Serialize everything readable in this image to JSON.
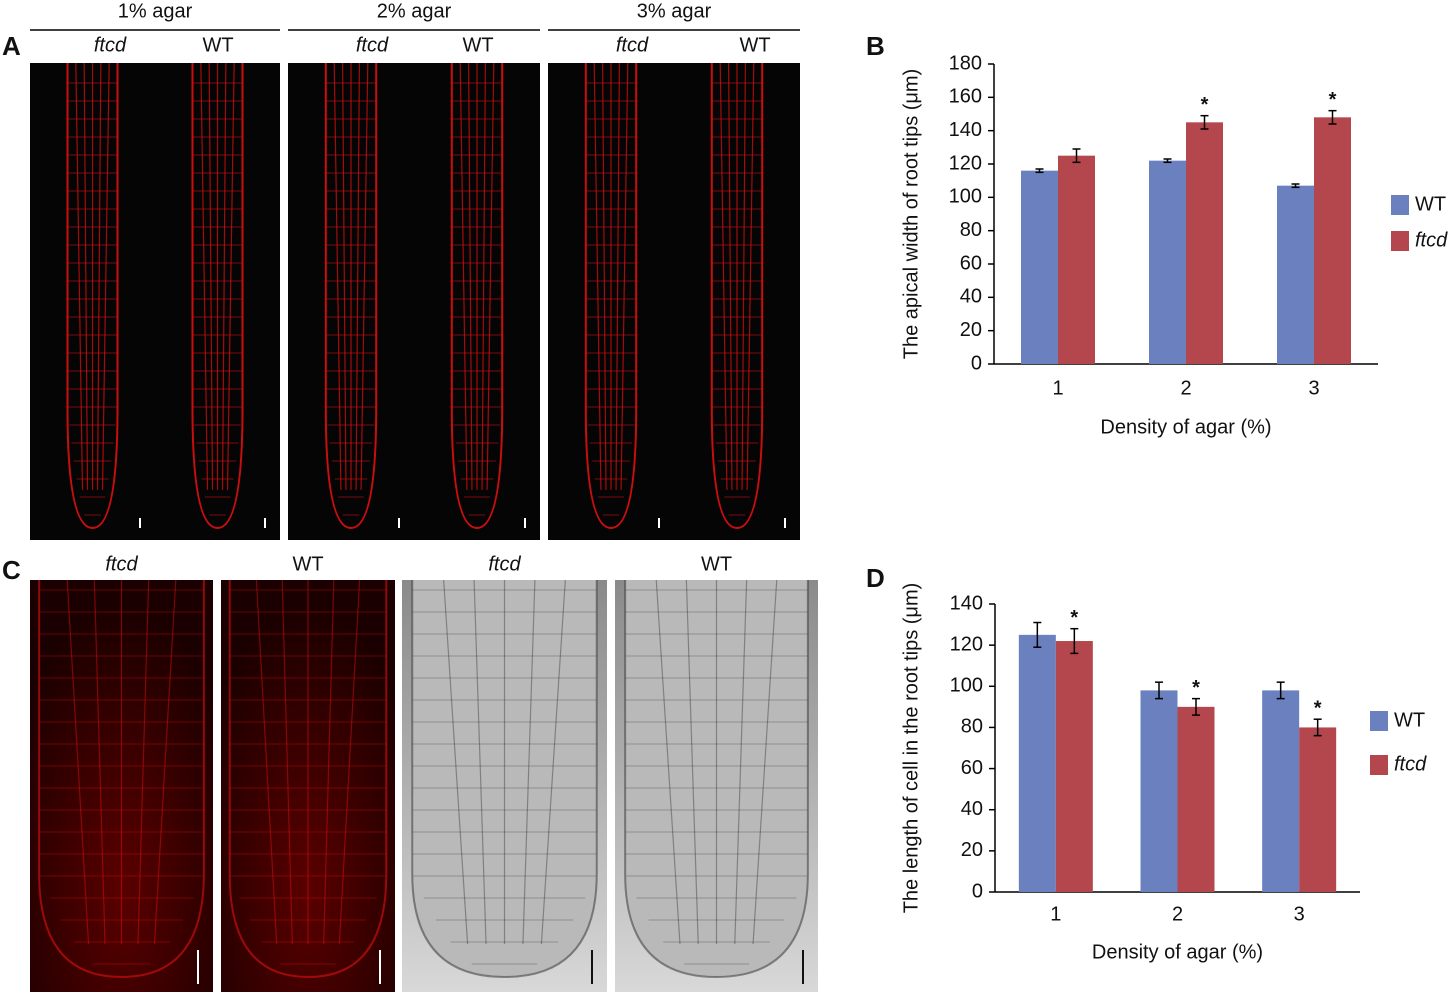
{
  "panels": {
    "A": {
      "label": "A",
      "groups": [
        {
          "title": "1% agar",
          "labels": [
            "ftcd",
            "WT"
          ]
        },
        {
          "title": "2% agar",
          "labels": [
            "ftcd",
            "WT"
          ]
        },
        {
          "title": "3% agar",
          "labels": [
            "ftcd",
            "WT"
          ]
        }
      ]
    },
    "C": {
      "label": "C",
      "labels": [
        "ftcd",
        "WT",
        "ftcd",
        "WT"
      ]
    }
  },
  "chart_data": [
    {
      "type": "bar",
      "panel_label": "B",
      "x_label": "Density of agar (%)",
      "y_label": "The apical width of root tips (μm)",
      "categories": [
        "1",
        "2",
        "3"
      ],
      "series": [
        {
          "name": "WT",
          "color": "#6a80bf",
          "values": [
            116,
            122,
            107
          ],
          "errors": [
            1,
            1,
            1
          ],
          "annotations": [
            null,
            null,
            null
          ]
        },
        {
          "name": "ftcd",
          "color": "#b3474d",
          "font_style": "italic",
          "values": [
            125,
            145,
            148
          ],
          "errors": [
            4,
            4,
            4
          ],
          "annotations": [
            null,
            "*",
            "*"
          ]
        }
      ],
      "ylim": [
        0,
        180
      ],
      "yticks": [
        0,
        20,
        40,
        60,
        80,
        100,
        120,
        140,
        160,
        180
      ],
      "grid": false,
      "legend": "right"
    },
    {
      "type": "bar",
      "panel_label": "D",
      "x_label": "Density of agar (%)",
      "y_label": "The length of cell in the root tips (μm)",
      "categories": [
        "1",
        "2",
        "3"
      ],
      "series": [
        {
          "name": "WT",
          "color": "#6a80bf",
          "values": [
            125,
            98,
            98
          ],
          "errors": [
            6,
            4,
            4
          ],
          "annotations": [
            null,
            null,
            null
          ]
        },
        {
          "name": "ftcd",
          "color": "#b3474d",
          "font_style": "italic",
          "values": [
            122,
            90,
            80
          ],
          "errors": [
            6,
            4,
            4
          ],
          "annotations": [
            "*",
            "*",
            "*"
          ]
        }
      ],
      "ylim": [
        0,
        140
      ],
      "yticks": [
        0,
        20,
        40,
        60,
        80,
        100,
        120,
        140
      ],
      "grid": false,
      "legend": "right"
    }
  ]
}
